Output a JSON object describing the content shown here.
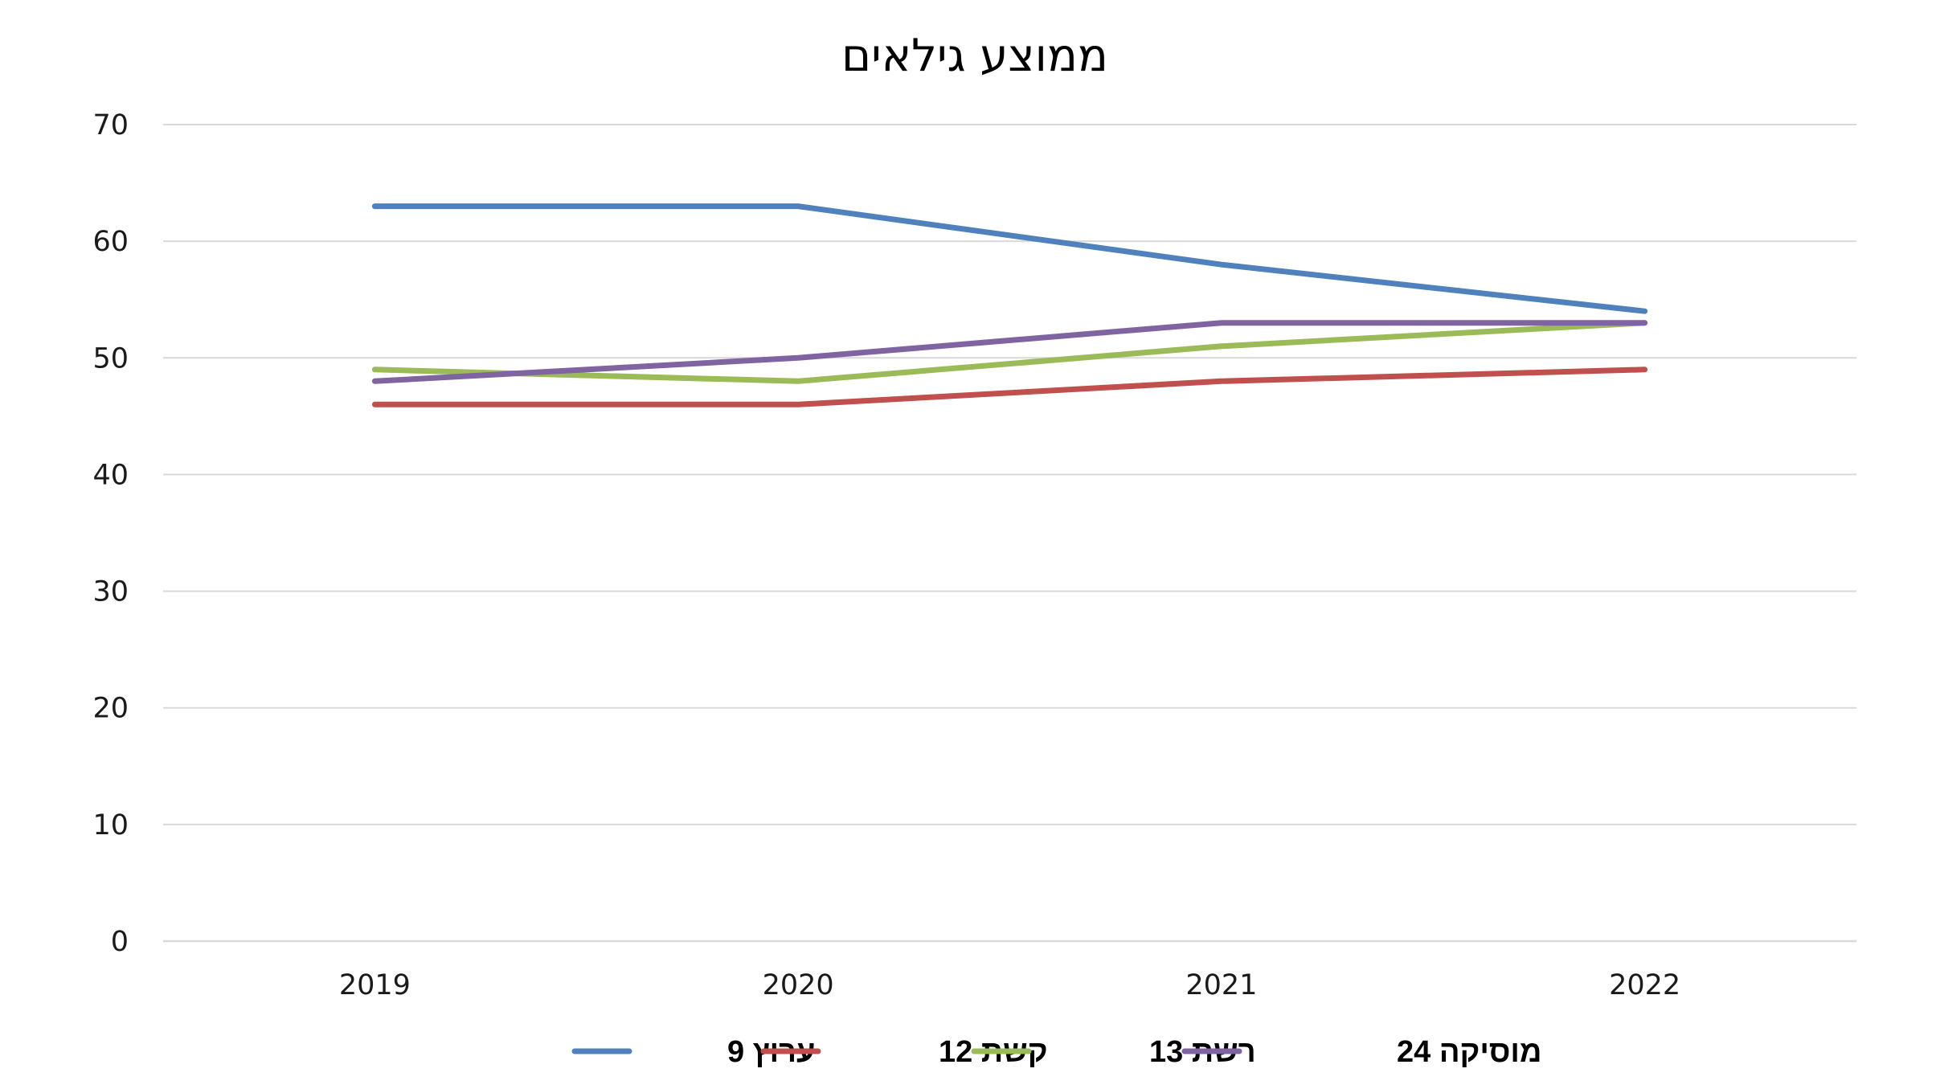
{
  "chart_data": {
    "type": "line",
    "title": "ממוצע גילאים",
    "xlabel": "",
    "ylabel": "",
    "categories": [
      "2019",
      "2020",
      "2021",
      "2022"
    ],
    "ylim": [
      0,
      70
    ],
    "y_ticks": [
      0,
      10,
      20,
      30,
      40,
      50,
      60,
      70
    ],
    "grid": true,
    "legend_position": "bottom",
    "series": [
      {
        "name": "ערוץ 9",
        "color": "#4F81BD",
        "values": [
          63,
          63,
          58,
          54
        ]
      },
      {
        "name": "קשת 12",
        "color": "#C0504D",
        "values": [
          46,
          46,
          48,
          49
        ]
      },
      {
        "name": "רשת 13",
        "color": "#9BBB59",
        "values": [
          49,
          48,
          51,
          53
        ]
      },
      {
        "name": "מוסיקה 24",
        "color": "#8064A2",
        "values": [
          48,
          50,
          53,
          53
        ]
      }
    ]
  }
}
